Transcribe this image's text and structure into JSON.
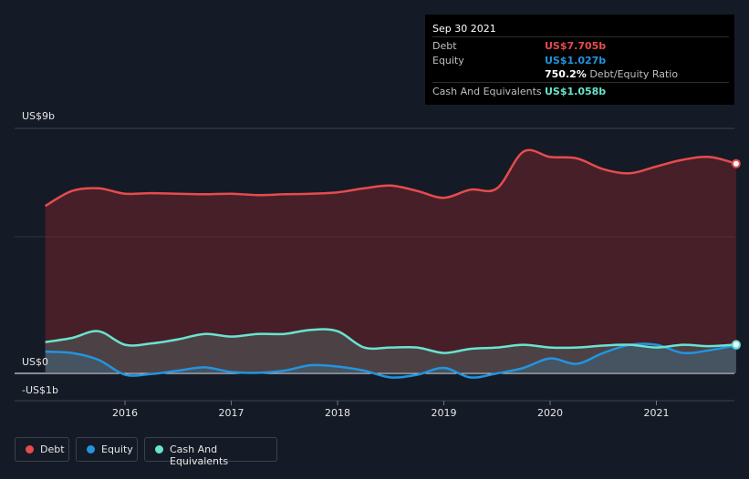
{
  "tooltip": {
    "date": "Sep 30 2021",
    "debt_label": "Debt",
    "debt_value": "US$7.705b",
    "equity_label": "Equity",
    "equity_value": "US$1.027b",
    "ratio_value": "750.2%",
    "ratio_label": "Debt/Equity Ratio",
    "cash_label": "Cash And Equivalents",
    "cash_value": "US$1.058b"
  },
  "legend": {
    "debt": "Debt",
    "equity": "Equity",
    "cash": "Cash And Equivalents"
  },
  "colors": {
    "debt": "#e64b4e",
    "equity": "#2394df",
    "cash": "#6ae3cf",
    "background": "#151b26"
  },
  "chart_data": {
    "type": "area",
    "ylim": [
      -1,
      9
    ],
    "y_tick_labels": [
      {
        "value": 9,
        "label": "US$9b"
      },
      {
        "value": 0,
        "label": "US$0"
      },
      {
        "value": -1,
        "label": "-US$1b"
      }
    ],
    "x_tick_labels": [
      {
        "value": 2016.0,
        "label": "2016"
      },
      {
        "value": 2017.0,
        "label": "2017"
      },
      {
        "value": 2018.0,
        "label": "2018"
      },
      {
        "value": 2019.0,
        "label": "2019"
      },
      {
        "value": 2020.0,
        "label": "2020"
      },
      {
        "value": 2021.0,
        "label": "2021"
      }
    ],
    "xlim": [
      2015.0,
      2021.75
    ],
    "series": [
      {
        "name": "Debt",
        "x": [
          2015.25,
          2015.5,
          2015.75,
          2016.0,
          2016.25,
          2016.5,
          2016.75,
          2017.0,
          2017.25,
          2017.5,
          2017.75,
          2018.0,
          2018.25,
          2018.5,
          2018.75,
          2019.0,
          2019.25,
          2019.5,
          2019.75,
          2020.0,
          2020.25,
          2020.5,
          2020.75,
          2021.0,
          2021.25,
          2021.5,
          2021.75
        ],
        "values": [
          6.15,
          6.7,
          6.8,
          6.6,
          6.62,
          6.6,
          6.58,
          6.6,
          6.55,
          6.58,
          6.6,
          6.65,
          6.8,
          6.9,
          6.7,
          6.45,
          6.75,
          6.8,
          8.15,
          7.95,
          7.9,
          7.5,
          7.35,
          7.6,
          7.85,
          7.95,
          7.705
        ]
      },
      {
        "name": "Equity",
        "x": [
          2015.25,
          2015.5,
          2015.75,
          2016.0,
          2016.25,
          2016.5,
          2016.75,
          2017.0,
          2017.25,
          2017.5,
          2017.75,
          2018.0,
          2018.25,
          2018.5,
          2018.75,
          2019.0,
          2019.25,
          2019.5,
          2019.75,
          2020.0,
          2020.25,
          2020.5,
          2020.75,
          2021.0,
          2021.25,
          2021.5,
          2021.75
        ],
        "values": [
          0.8,
          0.75,
          0.5,
          -0.05,
          -0.02,
          0.1,
          0.22,
          0.05,
          0.02,
          0.1,
          0.3,
          0.25,
          0.1,
          -0.15,
          -0.05,
          0.2,
          -0.15,
          0.0,
          0.2,
          0.55,
          0.35,
          0.75,
          1.05,
          1.05,
          0.75,
          0.85,
          1.027
        ]
      },
      {
        "name": "Cash And Equivalents",
        "x": [
          2015.25,
          2015.5,
          2015.75,
          2016.0,
          2016.25,
          2016.5,
          2016.75,
          2017.0,
          2017.25,
          2017.5,
          2017.75,
          2018.0,
          2018.25,
          2018.5,
          2018.75,
          2019.0,
          2019.25,
          2019.5,
          2019.75,
          2020.0,
          2020.25,
          2020.5,
          2020.75,
          2021.0,
          2021.25,
          2021.5,
          2021.75
        ],
        "values": [
          1.15,
          1.3,
          1.55,
          1.05,
          1.1,
          1.25,
          1.45,
          1.35,
          1.45,
          1.45,
          1.6,
          1.55,
          0.95,
          0.95,
          0.95,
          0.75,
          0.9,
          0.95,
          1.05,
          0.95,
          0.95,
          1.02,
          1.05,
          0.95,
          1.05,
          1.0,
          1.058
        ]
      }
    ]
  }
}
